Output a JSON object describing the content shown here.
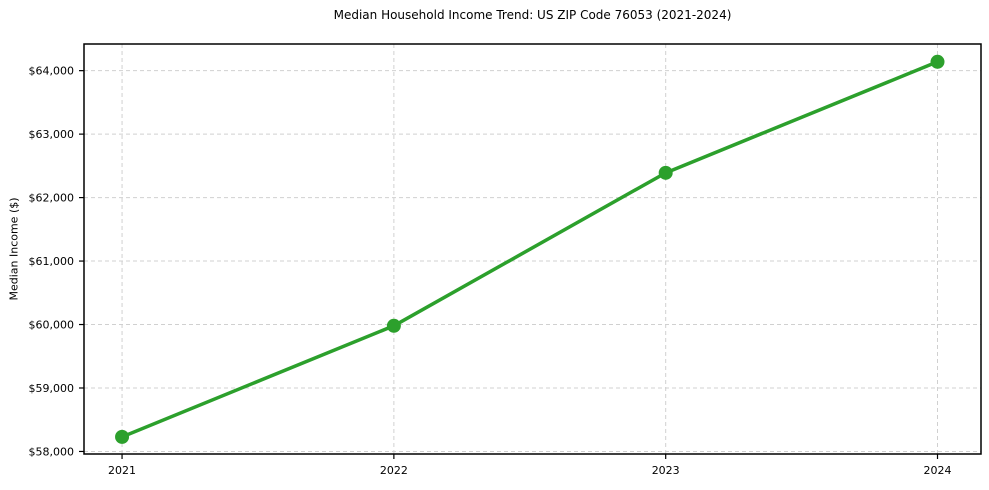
{
  "chart_data": {
    "type": "line",
    "title": "Median Household Income Trend: US ZIP Code 76053 (2021-2024)",
    "xlabel": "",
    "ylabel": "Median Income ($)",
    "x": [
      2021,
      2022,
      2023,
      2024
    ],
    "x_tick_labels": [
      "2021",
      "2022",
      "2023",
      "2024"
    ],
    "series": [
      {
        "name": "Median Household Income",
        "values": [
          58230,
          59980,
          62390,
          64140
        ],
        "color": "#2ca02c",
        "marker": "circle"
      }
    ],
    "yticks": [
      58000,
      59000,
      60000,
      61000,
      62000,
      63000,
      64000
    ],
    "y_tick_labels": [
      "$58,000",
      "$59,000",
      "$60,000",
      "$61,000",
      "$62,000",
      "$63,000",
      "$64,000"
    ],
    "xlim": [
      2020.86,
      2024.16
    ],
    "ylim": [
      57960,
      64420
    ],
    "grid": true,
    "grid_style": "dashed",
    "legend_position": "none",
    "colors": {
      "line": "#2ca02c",
      "grid": "#d0d0d0",
      "spine": "#000000",
      "text": "#000000",
      "background": "#ffffff"
    }
  }
}
